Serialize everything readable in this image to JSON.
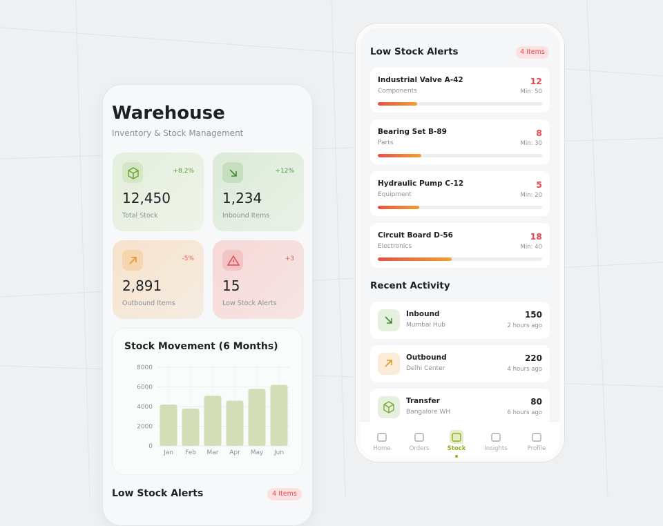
{
  "left": {
    "title": "Warehouse",
    "subtitle": "Inventory & Stock Management",
    "stats": [
      {
        "change": "+8.2%",
        "value": "12,450",
        "label": "Total Stock"
      },
      {
        "change": "+12%",
        "value": "1,234",
        "label": "Inbound Items"
      },
      {
        "change": "-5%",
        "value": "2,891",
        "label": "Outbound Items"
      },
      {
        "change": "+3",
        "value": "15",
        "label": "Low Stock Alerts"
      }
    ],
    "chart": {
      "type": "bar",
      "title": "Stock Movement (6 Months)",
      "categories": [
        "Jan",
        "Feb",
        "Mar",
        "Apr",
        "May",
        "Jun"
      ],
      "values": [
        4200,
        3800,
        5100,
        4600,
        5800,
        6200
      ],
      "color": "#d3ddb8",
      "ylim": [
        0,
        8000
      ],
      "yticks": [
        0,
        2000,
        4000,
        6000,
        8000
      ],
      "grid": true
    },
    "alerts_heading": "Low Stock Alerts",
    "alerts_count": "4 Items"
  },
  "right": {
    "alerts_heading": "Low Stock Alerts",
    "alerts_count": "4 Items",
    "alerts": [
      {
        "name": "Industrial Valve A-42",
        "category": "Components",
        "count": 12,
        "min": {
          "value": 50,
          "label": "Min: 50"
        }
      },
      {
        "name": "Bearing Set B-89",
        "category": "Parts",
        "count": 8,
        "min": {
          "value": 30,
          "label": "Min: 30"
        }
      },
      {
        "name": "Hydraulic Pump C-12",
        "category": "Equipment",
        "count": 5,
        "min": {
          "value": 20,
          "label": "Min: 20"
        }
      },
      {
        "name": "Circuit Board D-56",
        "category": "Electronics",
        "count": 18,
        "min": {
          "value": 40,
          "label": "Min: 40"
        }
      }
    ],
    "activity_heading": "Recent Activity",
    "activity": [
      {
        "type": "Inbound",
        "location": "Mumbai Hub",
        "quantity": 150,
        "time": "2 hours ago"
      },
      {
        "type": "Outbound",
        "location": "Delhi Center",
        "quantity": 220,
        "time": "4 hours ago"
      },
      {
        "type": "Transfer",
        "location": "Bangalore WH",
        "quantity": 80,
        "time": "6 hours ago"
      }
    ],
    "nav": [
      "Home",
      "Orders",
      "Stock",
      "Insights",
      "Profile"
    ],
    "nav_active": 2
  }
}
